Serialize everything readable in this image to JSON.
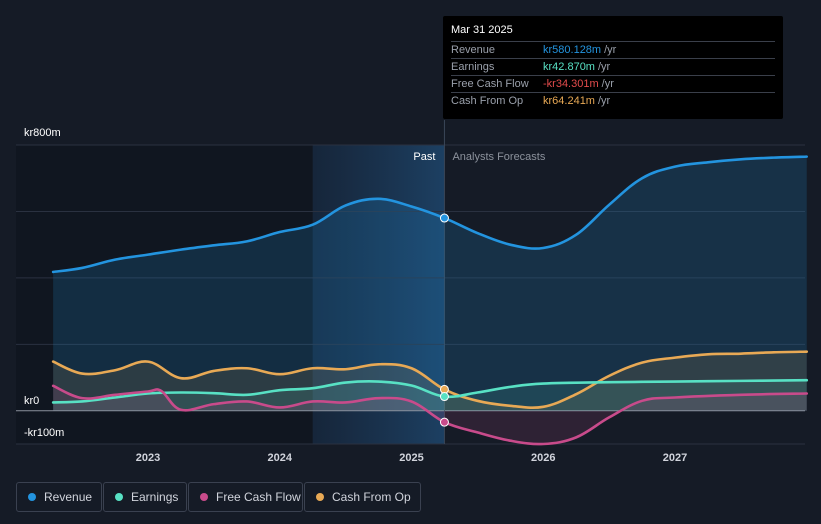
{
  "chart_data": {
    "type": "area",
    "title": "",
    "x_unit": "year",
    "x_range": [
      2022.25,
      2028.0
    ],
    "ylim": [
      -100,
      800
    ],
    "y_tick_labels": [
      {
        "value": 800,
        "label": "kr800m"
      },
      {
        "value": 0,
        "label": "kr0"
      },
      {
        "value": -100,
        "label": "-kr100m"
      }
    ],
    "x_ticks": [
      {
        "value": 2023.0,
        "label": "2023"
      },
      {
        "value": 2024.0,
        "label": "2024"
      },
      {
        "value": 2025.0,
        "label": "2025"
      },
      {
        "value": 2026.0,
        "label": "2026"
      },
      {
        "value": 2027.0,
        "label": "2027"
      }
    ],
    "divider_x": 2025.25,
    "past_highlight_start": 2024.25,
    "past_label": "Past",
    "forecast_label": "Analysts Forecasts",
    "series": [
      {
        "name": "Revenue",
        "key": "revenue",
        "color": "#2394df",
        "fill": true,
        "points": [
          [
            2022.28,
            418
          ],
          [
            2022.5,
            430
          ],
          [
            2022.75,
            455
          ],
          [
            2023.0,
            470
          ],
          [
            2023.25,
            485
          ],
          [
            2023.5,
            498
          ],
          [
            2023.75,
            510
          ],
          [
            2024.0,
            538
          ],
          [
            2024.25,
            560
          ],
          [
            2024.5,
            618
          ],
          [
            2024.75,
            638
          ],
          [
            2025.0,
            615
          ],
          [
            2025.25,
            580.128
          ],
          [
            2025.5,
            535
          ],
          [
            2025.75,
            500
          ],
          [
            2026.0,
            490
          ],
          [
            2026.25,
            530
          ],
          [
            2026.5,
            620
          ],
          [
            2026.75,
            700
          ],
          [
            2027.0,
            735
          ],
          [
            2027.25,
            748
          ],
          [
            2027.5,
            757
          ],
          [
            2027.75,
            762
          ],
          [
            2028.0,
            765
          ]
        ]
      },
      {
        "name": "Earnings",
        "key": "earnings",
        "color": "#58e1c4",
        "fill": true,
        "points": [
          [
            2022.28,
            25
          ],
          [
            2022.5,
            28
          ],
          [
            2022.75,
            40
          ],
          [
            2023.0,
            52
          ],
          [
            2023.25,
            55
          ],
          [
            2023.5,
            53
          ],
          [
            2023.75,
            48
          ],
          [
            2024.0,
            62
          ],
          [
            2024.25,
            68
          ],
          [
            2024.5,
            85
          ],
          [
            2024.75,
            88
          ],
          [
            2025.0,
            76
          ],
          [
            2025.25,
            42.87
          ],
          [
            2025.5,
            55
          ],
          [
            2025.75,
            72
          ],
          [
            2026.0,
            82
          ],
          [
            2026.5,
            86
          ],
          [
            2027.0,
            88
          ],
          [
            2027.5,
            90
          ],
          [
            2028.0,
            92
          ]
        ]
      },
      {
        "name": "Free Cash Flow",
        "key": "free_cash_flow",
        "color": "#c84b8b",
        "fill": true,
        "points": [
          [
            2022.28,
            75
          ],
          [
            2022.5,
            38
          ],
          [
            2022.75,
            48
          ],
          [
            2023.0,
            58
          ],
          [
            2023.1,
            60
          ],
          [
            2023.25,
            3
          ],
          [
            2023.5,
            20
          ],
          [
            2023.75,
            28
          ],
          [
            2024.0,
            10
          ],
          [
            2024.25,
            28
          ],
          [
            2024.5,
            25
          ],
          [
            2024.75,
            38
          ],
          [
            2025.0,
            28
          ],
          [
            2025.25,
            -34.301
          ],
          [
            2025.5,
            -65
          ],
          [
            2025.75,
            -90
          ],
          [
            2026.0,
            -100
          ],
          [
            2026.25,
            -80
          ],
          [
            2026.5,
            -20
          ],
          [
            2026.75,
            30
          ],
          [
            2027.0,
            40
          ],
          [
            2027.5,
            48
          ],
          [
            2028.0,
            52
          ]
        ]
      },
      {
        "name": "Cash From Op",
        "key": "cash_from_op",
        "color": "#e8a955",
        "fill": true,
        "points": [
          [
            2022.28,
            148
          ],
          [
            2022.5,
            112
          ],
          [
            2022.75,
            122
          ],
          [
            2023.0,
            148
          ],
          [
            2023.25,
            98
          ],
          [
            2023.5,
            120
          ],
          [
            2023.75,
            128
          ],
          [
            2024.0,
            110
          ],
          [
            2024.25,
            128
          ],
          [
            2024.5,
            125
          ],
          [
            2024.75,
            140
          ],
          [
            2025.0,
            128
          ],
          [
            2025.25,
            64.241
          ],
          [
            2025.5,
            30
          ],
          [
            2025.75,
            15
          ],
          [
            2026.0,
            12
          ],
          [
            2026.25,
            50
          ],
          [
            2026.5,
            105
          ],
          [
            2026.75,
            145
          ],
          [
            2027.0,
            160
          ],
          [
            2027.25,
            170
          ],
          [
            2027.5,
            172
          ],
          [
            2027.75,
            176
          ],
          [
            2028.0,
            178
          ]
        ]
      }
    ]
  },
  "tooltip": {
    "date": "Mar 31 2025",
    "rows": [
      {
        "label": "Revenue",
        "value": "kr580.128m",
        "unit": "/yr",
        "color": "#2394df"
      },
      {
        "label": "Earnings",
        "value": "kr42.870m",
        "unit": "/yr",
        "color": "#58e1c4"
      },
      {
        "label": "Free Cash Flow",
        "value": "-kr34.301m",
        "unit": "/yr",
        "color": "#e34c4c"
      },
      {
        "label": "Cash From Op",
        "value": "kr64.241m",
        "unit": "/yr",
        "color": "#e8a955"
      }
    ]
  },
  "legend": [
    {
      "label": "Revenue",
      "color": "#2394df"
    },
    {
      "label": "Earnings",
      "color": "#58e1c4"
    },
    {
      "label": "Free Cash Flow",
      "color": "#c84b8b"
    },
    {
      "label": "Cash From Op",
      "color": "#e8a955"
    }
  ]
}
